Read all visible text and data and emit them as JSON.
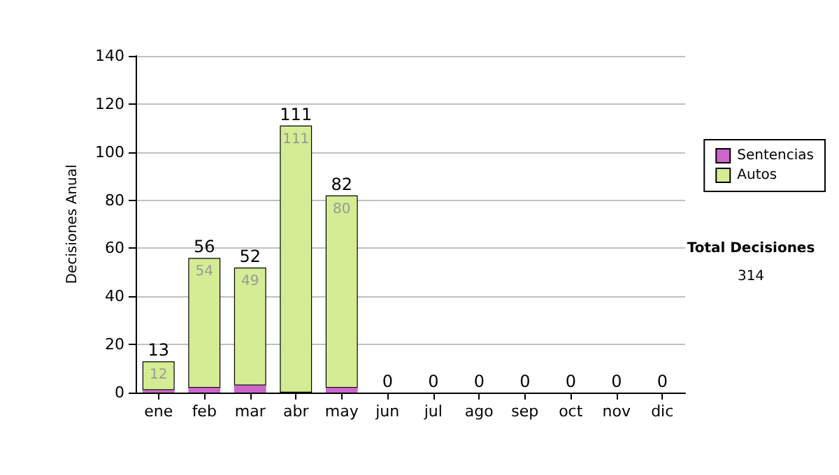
{
  "chart_data": {
    "type": "bar",
    "stacked": true,
    "ylabel": "Decisiones Anual",
    "categories": [
      "ene",
      "feb",
      "mar",
      "abr",
      "may",
      "jun",
      "jul",
      "ago",
      "sep",
      "oct",
      "nov",
      "dic"
    ],
    "series": [
      {
        "name": "Sentencias",
        "color": "#cc66cc",
        "values": [
          1,
          2,
          3,
          0,
          2,
          0,
          0,
          0,
          0,
          0,
          0,
          0
        ]
      },
      {
        "name": "Autos",
        "color": "#d4ec94",
        "values": [
          12,
          54,
          49,
          111,
          80,
          0,
          0,
          0,
          0,
          0,
          0,
          0
        ],
        "value_labels": [
          "12",
          "54",
          "49",
          "111",
          "80",
          null,
          null,
          null,
          null,
          null,
          null,
          null
        ]
      }
    ],
    "totals": [
      "13",
      "56",
      "52",
      "111",
      "82",
      "0",
      "0",
      "0",
      "0",
      "0",
      "0",
      "0"
    ],
    "ylim": [
      0,
      140
    ],
    "yticks": [
      0,
      20,
      40,
      60,
      80,
      100,
      120,
      140
    ],
    "grid": "y",
    "legend": "right",
    "annotations": [
      "Total Decisiones",
      "314"
    ]
  }
}
